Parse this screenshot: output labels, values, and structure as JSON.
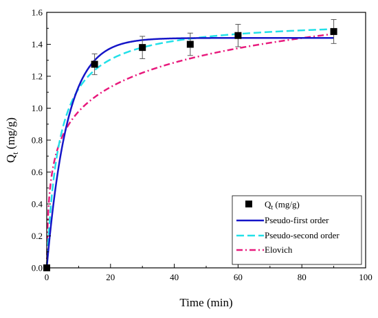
{
  "chart_data": {
    "type": "scatter",
    "title": "",
    "xlabel": "Time (min)",
    "ylabel_main": "Q",
    "ylabel_sub": "t",
    "ylabel_unit": " (mg/g)",
    "xlim": [
      0,
      100
    ],
    "ylim": [
      0.0,
      1.6
    ],
    "xticks": [
      "0",
      "20",
      "40",
      "60",
      "80",
      "100"
    ],
    "yticks": [
      "0.0",
      "0.2",
      "0.4",
      "0.6",
      "0.8",
      "1.0",
      "1.2",
      "1.4",
      "1.6"
    ],
    "grid": false,
    "legend_position": "bottom-right",
    "points": {
      "name_main": "Q",
      "name_sub": "t",
      "name_unit": " (mg/g)",
      "color": "#000000",
      "x": [
        0,
        15,
        30,
        45,
        60,
        90
      ],
      "y": [
        0.0,
        1.275,
        1.38,
        1.4,
        1.455,
        1.48
      ],
      "error": [
        0.0,
        0.065,
        0.07,
        0.07,
        0.07,
        0.075
      ]
    },
    "series": [
      {
        "name": "Pseudo-first order",
        "color": "#1515c8",
        "style": "solid",
        "model": "pfo",
        "params": {
          "qe": 1.44,
          "k1": 0.155
        }
      },
      {
        "name": "Pseudo-second order",
        "color": "#22e0e8",
        "style": "dashed",
        "model": "pso",
        "params": {
          "qe": 1.56,
          "k2": 0.164
        }
      },
      {
        "name": "Elovich",
        "color": "#e8197c",
        "style": "dashdot",
        "model": "elovich",
        "params": {
          "alpha": 1.8,
          "beta": 4.5
        }
      }
    ]
  }
}
